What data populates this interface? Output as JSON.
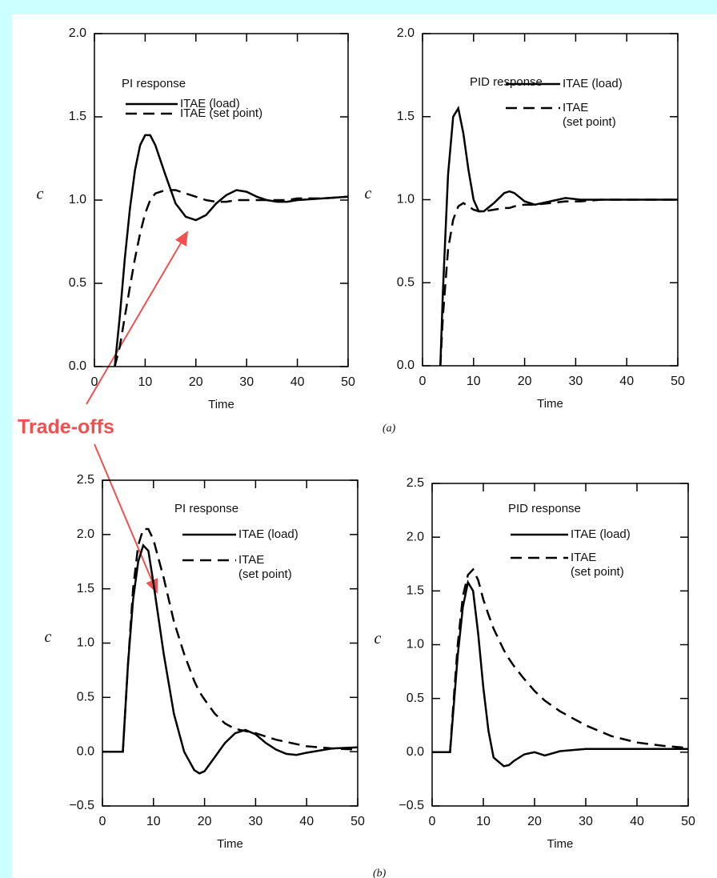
{
  "annotation": "Trade-offs",
  "figure_labels": [
    "(a)",
    "(b)"
  ],
  "chart_data": [
    {
      "type": "line",
      "title": "PI response",
      "x_label": "Time",
      "y_label": "c",
      "xlim": [
        0,
        50
      ],
      "xticks": [
        0,
        10,
        20,
        30,
        40,
        50
      ],
      "ylim": [
        0,
        2
      ],
      "yticks": [
        {
          "value": 0,
          "label": "0.0"
        },
        0.5,
        {
          "value": 1,
          "label": "1.0"
        },
        1.5,
        {
          "value": 2,
          "label": "2.0"
        }
      ],
      "x": [
        4,
        5,
        6,
        7,
        8,
        9,
        10,
        11,
        12,
        14,
        16,
        18,
        20,
        22,
        24,
        26,
        28,
        30,
        32,
        34,
        36,
        38,
        40,
        45,
        50
      ],
      "series": [
        {
          "name": "ITAE (load)",
          "style": "solid",
          "color": "#000000",
          "values": [
            0,
            0.3,
            0.65,
            0.95,
            1.18,
            1.33,
            1.39,
            1.39,
            1.33,
            1.15,
            0.98,
            0.9,
            0.88,
            0.91,
            0.98,
            1.03,
            1.06,
            1.05,
            1.02,
            1.0,
            0.99,
            0.99,
            1.0,
            1.01,
            1.02
          ]
        },
        {
          "name": "ITAE (set point)",
          "style": "dashed",
          "color": "#000000",
          "values": [
            0,
            0.12,
            0.3,
            0.48,
            0.65,
            0.8,
            0.92,
            1.0,
            1.04,
            1.06,
            1.06,
            1.04,
            1.02,
            1.0,
            0.99,
            0.99,
            1.0,
            1.0,
            1.0,
            1.0,
            1.0,
            1.0,
            1.01,
            1.01,
            1.02
          ]
        }
      ]
    },
    {
      "type": "line",
      "title": "PID response",
      "x_label": "Time",
      "y_label": "c",
      "xlim": [
        0,
        50
      ],
      "xticks": [
        0,
        10,
        20,
        30,
        40,
        50
      ],
      "ylim": [
        0,
        2
      ],
      "yticks": [
        {
          "value": 0,
          "label": "0.0"
        },
        0.5,
        {
          "value": 1,
          "label": "1.0"
        },
        1.5,
        {
          "value": 2,
          "label": "2.0"
        }
      ],
      "x": [
        3.5,
        4,
        5,
        6,
        7,
        8,
        9,
        10,
        11,
        12,
        14,
        16,
        17,
        18,
        20,
        22,
        25,
        28,
        31,
        35,
        40,
        45,
        50
      ],
      "series": [
        {
          "name": "ITAE (load)",
          "style": "solid",
          "color": "#000000",
          "values": [
            0,
            0.45,
            1.15,
            1.5,
            1.55,
            1.4,
            1.18,
            1.0,
            0.93,
            0.93,
            0.98,
            1.04,
            1.05,
            1.04,
            0.99,
            0.97,
            0.99,
            1.01,
            1.0,
            1.0,
            1.0,
            1.0,
            1.0
          ]
        },
        {
          "name": "ITAE\n(set point)",
          "style": "dashed",
          "color": "#000000",
          "values": [
            0,
            0.3,
            0.7,
            0.88,
            0.96,
            0.98,
            0.96,
            0.94,
            0.93,
            0.93,
            0.94,
            0.95,
            0.95,
            0.96,
            0.97,
            0.97,
            0.98,
            0.99,
            0.99,
            1.0,
            1.0,
            1.0,
            1.0
          ]
        }
      ]
    },
    {
      "type": "line",
      "title": "PI response",
      "x_label": "Time",
      "y_label": "c",
      "xlim": [
        0,
        50
      ],
      "xticks": [
        0,
        10,
        20,
        30,
        40,
        50
      ],
      "ylim": [
        -0.5,
        2.5
      ],
      "yticks": [
        {
          "value": -0.5,
          "label": "−0.5"
        },
        {
          "value": 0,
          "label": "0.0"
        },
        0.5,
        {
          "value": 1,
          "label": "1.0"
        },
        1.5,
        {
          "value": 2,
          "label": "2.0"
        },
        2.5
      ],
      "x": [
        0,
        4,
        5,
        6,
        7,
        8,
        9,
        10,
        12,
        14,
        16,
        18,
        19,
        20,
        22,
        24,
        26,
        28,
        30,
        32,
        34,
        36,
        38,
        40,
        45,
        50
      ],
      "series": [
        {
          "name": "ITAE (load)",
          "style": "solid",
          "color": "#000000",
          "values": [
            0,
            0,
            0.8,
            1.4,
            1.75,
            1.9,
            1.85,
            1.55,
            0.9,
            0.35,
            0.0,
            -0.17,
            -0.2,
            -0.18,
            -0.05,
            0.08,
            0.17,
            0.2,
            0.16,
            0.08,
            0.02,
            -0.02,
            -0.03,
            -0.01,
            0.03,
            0.04
          ]
        },
        {
          "name": "ITAE\n(set point)",
          "style": "dashed",
          "color": "#000000",
          "values": [
            0,
            0,
            0.8,
            1.5,
            1.9,
            2.05,
            2.05,
            1.95,
            1.6,
            1.2,
            0.9,
            0.65,
            0.55,
            0.48,
            0.35,
            0.26,
            0.21,
            0.19,
            0.17,
            0.14,
            0.11,
            0.09,
            0.07,
            0.05,
            0.03,
            0.02
          ]
        }
      ]
    },
    {
      "type": "line",
      "title": "PID response",
      "x_label": "Time",
      "y_label": "c",
      "xlim": [
        0,
        50
      ],
      "xticks": [
        0,
        10,
        20,
        30,
        40,
        50
      ],
      "ylim": [
        -0.5,
        2.5
      ],
      "yticks": [
        {
          "value": -0.5,
          "label": "−0.5"
        },
        {
          "value": 0,
          "label": "0.0"
        },
        0.5,
        {
          "value": 1,
          "label": "1.0"
        },
        1.5,
        {
          "value": 2,
          "label": "2.0"
        },
        2.5
      ],
      "x": [
        0,
        3.5,
        4,
        5,
        6,
        7,
        8,
        9,
        10,
        11,
        12,
        14,
        15,
        16,
        18,
        20,
        22,
        25,
        30,
        35,
        40,
        45,
        50
      ],
      "series": [
        {
          "name": "ITAE (load)",
          "style": "solid",
          "color": "#000000",
          "values": [
            0,
            0,
            0.3,
            0.9,
            1.35,
            1.58,
            1.5,
            1.1,
            0.6,
            0.2,
            -0.05,
            -0.13,
            -0.12,
            -0.08,
            -0.02,
            0.0,
            -0.03,
            0.01,
            0.03,
            0.03,
            0.03,
            0.03,
            0.03
          ]
        },
        {
          "name": "ITAE\n(set point)",
          "style": "dashed",
          "color": "#000000",
          "values": [
            0,
            0,
            0.35,
            1.0,
            1.45,
            1.65,
            1.7,
            1.6,
            1.42,
            1.28,
            1.15,
            0.95,
            0.87,
            0.8,
            0.68,
            0.57,
            0.48,
            0.38,
            0.25,
            0.15,
            0.09,
            0.06,
            0.04
          ]
        }
      ]
    }
  ]
}
